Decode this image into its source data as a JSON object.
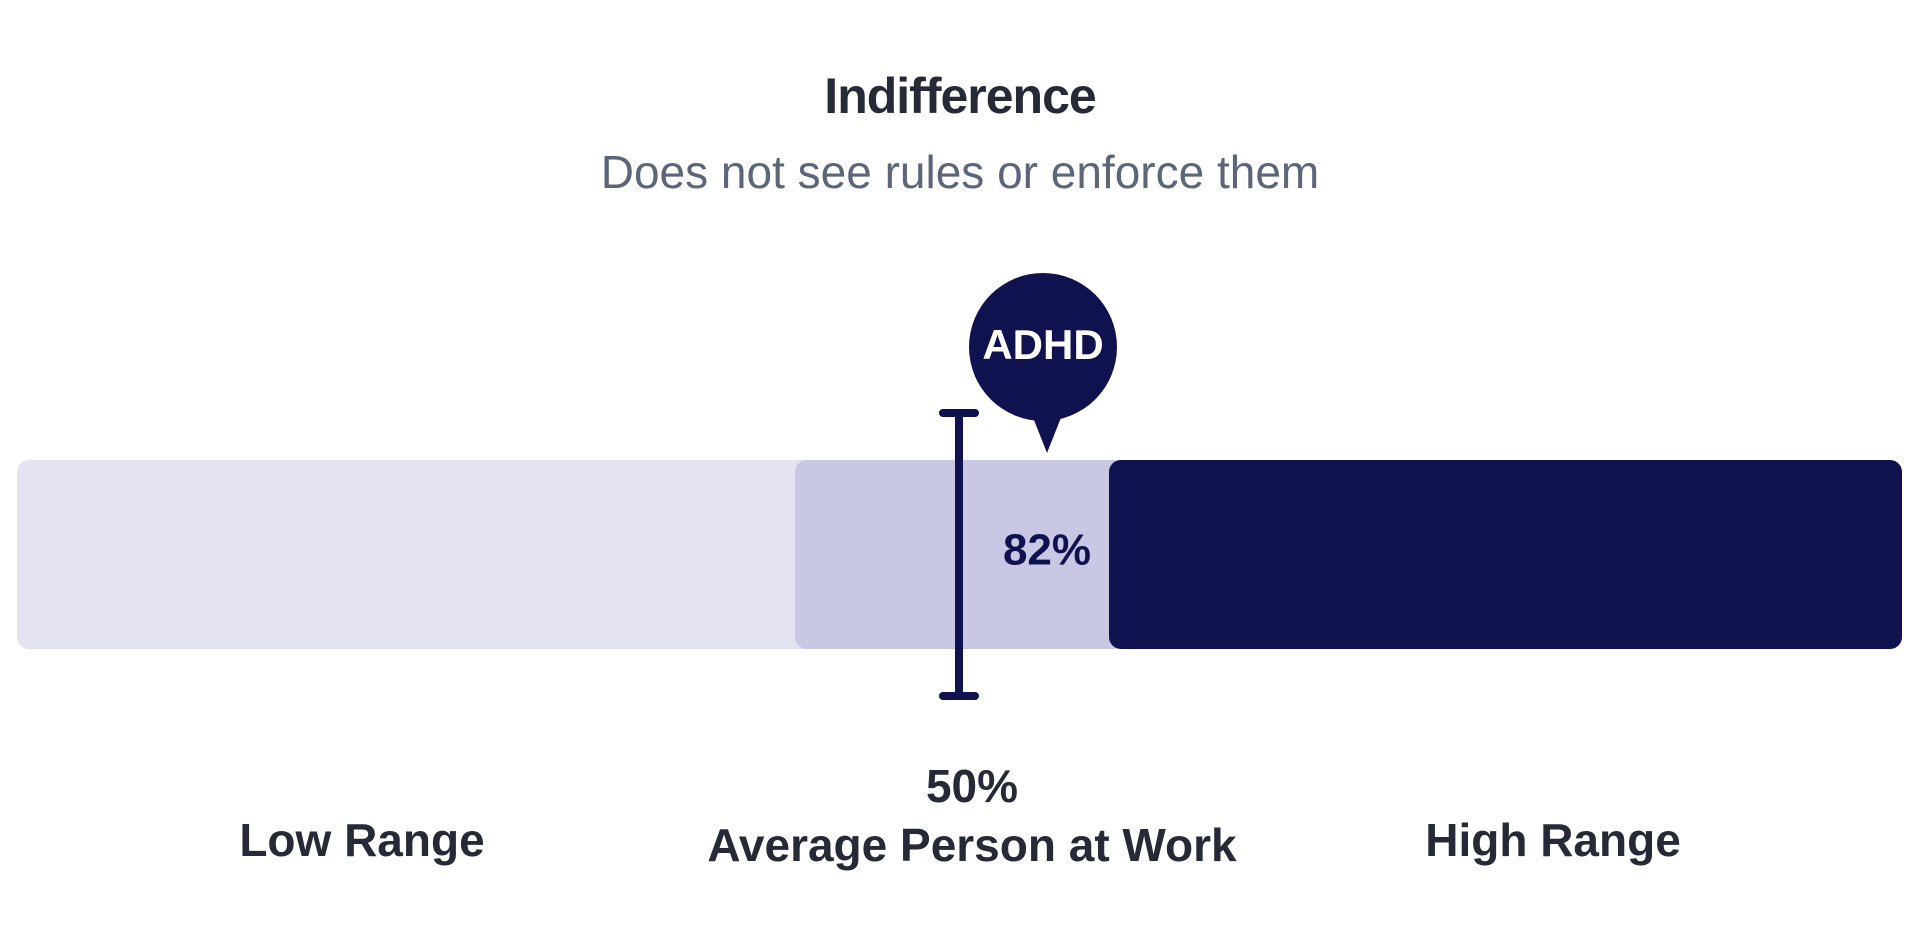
{
  "header": {
    "title": "Indifference",
    "subtitle": "Does not see rules or enforce them"
  },
  "marker": {
    "label": "ADHD",
    "score": "82%"
  },
  "average": {
    "value": "50%",
    "label": "Average Person at Work"
  },
  "ranges": {
    "low": "Low Range",
    "high": "High Range"
  }
}
